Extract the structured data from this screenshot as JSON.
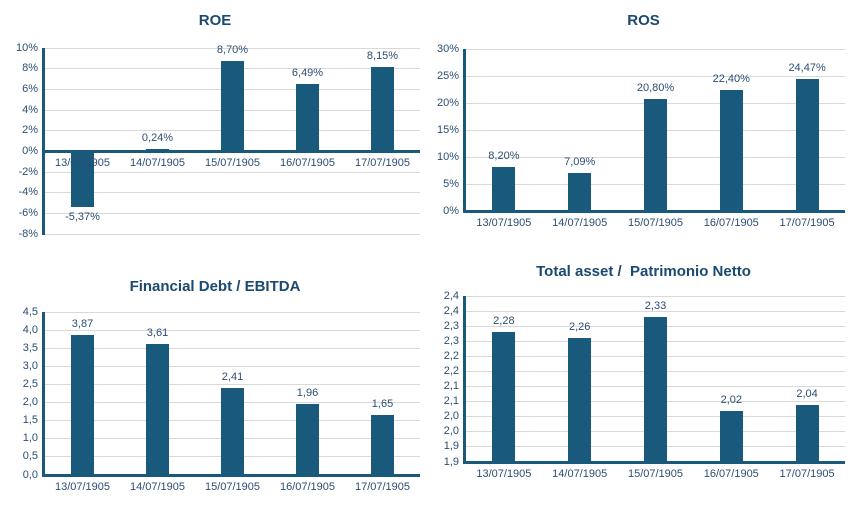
{
  "colors": {
    "background": "#FFFFFF",
    "bar": "#19597C",
    "axis_line": "#19597C",
    "grid_line": "#D9D9D9",
    "title_text": "#1A4971",
    "label_text": "#2B4E74"
  },
  "chart_data": [
    {
      "type": "bar",
      "title": "ROE",
      "categories": [
        "13/07/1905",
        "14/07/1905",
        "15/07/1905",
        "16/07/1905",
        "17/07/1905"
      ],
      "values": [
        -5.37,
        0.24,
        8.7,
        6.49,
        8.15
      ],
      "value_labels": [
        "-5,37%",
        "0,24%",
        "8,70%",
        "6,49%",
        "8,15%"
      ],
      "ylabel": "",
      "xlabel": "",
      "ylim": [
        -8,
        10
      ],
      "baseline": 0,
      "ytick_labels_top_to_bottom": [
        "10%",
        "8%",
        "6%",
        "4%",
        "2%",
        "0%",
        "-2%",
        "-4%",
        "-6%",
        "-8%"
      ],
      "grid": true,
      "legend": "none"
    },
    {
      "type": "bar",
      "title": "ROS",
      "categories": [
        "13/07/1905",
        "14/07/1905",
        "15/07/1905",
        "16/07/1905",
        "17/07/1905"
      ],
      "values": [
        8.2,
        7.09,
        20.8,
        22.4,
        24.47
      ],
      "value_labels": [
        "8,20%",
        "7,09%",
        "20,80%",
        "22,40%",
        "24,47%"
      ],
      "ylabel": "",
      "xlabel": "",
      "ylim": [
        0,
        30
      ],
      "baseline": 0,
      "ytick_labels_top_to_bottom": [
        "30%",
        "25%",
        "20%",
        "15%",
        "10%",
        "5%",
        "0%"
      ],
      "grid": true,
      "legend": "none"
    },
    {
      "type": "bar",
      "title": "Financial Debt / EBITDA",
      "categories": [
        "13/07/1905",
        "14/07/1905",
        "15/07/1905",
        "16/07/1905",
        "17/07/1905"
      ],
      "values": [
        3.87,
        3.61,
        2.41,
        1.96,
        1.65
      ],
      "value_labels": [
        "3,87",
        "3,61",
        "2,41",
        "1,96",
        "1,65"
      ],
      "ylabel": "",
      "xlabel": "",
      "ylim": [
        0,
        4.5
      ],
      "baseline": 0,
      "ytick_labels_top_to_bottom": [
        "4,5",
        "4,0",
        "3,5",
        "3,0",
        "2,5",
        "2,0",
        "1,5",
        "1,0",
        "0,5",
        "0,0"
      ],
      "grid": true,
      "legend": "none"
    },
    {
      "type": "bar",
      "title": "Total asset /  Patrimonio Netto",
      "categories": [
        "13/07/1905",
        "14/07/1905",
        "15/07/1905",
        "16/07/1905",
        "17/07/1905"
      ],
      "values": [
        2.28,
        2.26,
        2.33,
        2.02,
        2.04
      ],
      "value_labels": [
        "2,28",
        "2,26",
        "2,33",
        "2,02",
        "2,04"
      ],
      "ylabel": "",
      "xlabel": "",
      "ylim": [
        1.85,
        2.4
      ],
      "baseline": 1.85,
      "ytick_labels_top_to_bottom": [
        "2,4",
        "2,4",
        "2,3",
        "2,3",
        "2,2",
        "2,2",
        "2,1",
        "2,1",
        "2,0",
        "2,0",
        "1,9",
        "1,9"
      ],
      "grid": true,
      "legend": "none"
    }
  ]
}
